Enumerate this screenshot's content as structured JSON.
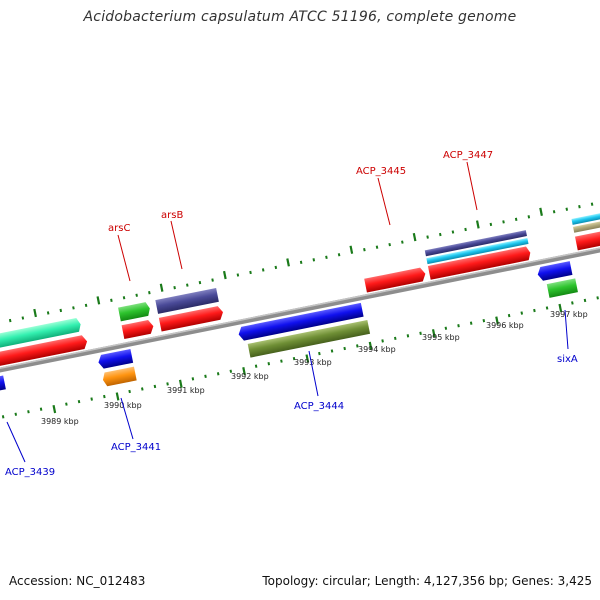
{
  "title": "Acidobacterium capsulatum ATCC 51196, complete genome",
  "footer": {
    "accession": "Accession: NC_012483",
    "topology": "Topology: circular; Length: 4,127,356 bp; Genes: 3,425"
  },
  "scale_labels": [
    "3989 kbp",
    "3990 kbp",
    "3991 kbp",
    "3992 kbp",
    "3993 kbp",
    "3994 kbp",
    "3995 kbp",
    "3996 kbp",
    "3997 kbp"
  ],
  "gene_labels_forward": [
    "arsC",
    "arsB",
    "ACP_3445",
    "ACP_3447"
  ],
  "gene_labels_reverse": [
    "ACP_3439",
    "ACP_3441",
    "ACP_3444",
    "sixA"
  ],
  "colors": {
    "forward_label": "#cc0000",
    "reverse_label": "#0000cc",
    "backbone": "#8a8a8a",
    "tick": "#1a7a1a"
  }
}
